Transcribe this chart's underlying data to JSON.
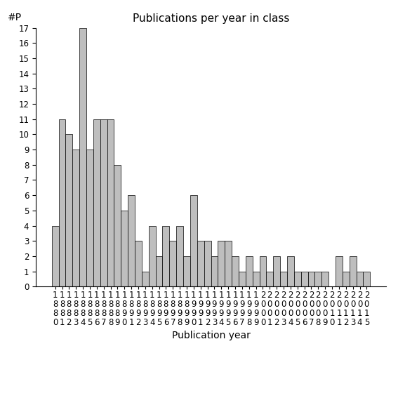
{
  "title": "Publications per year in class",
  "xlabel": "Publication year",
  "ylabel": "#P",
  "bar_color": "#bebebe",
  "edge_color": "#000000",
  "categories": [
    "1880",
    "1881",
    "1882",
    "1883",
    "1884",
    "1885",
    "1886",
    "1887",
    "1888",
    "1889",
    "1890",
    "1891",
    "1892",
    "1893",
    "1894",
    "1895",
    "1896",
    "1897",
    "1898",
    "1899",
    "1990",
    "1991",
    "1992",
    "1993",
    "1994",
    "1995",
    "1996",
    "1997",
    "1998",
    "1999",
    "2000",
    "2001",
    "2002",
    "2003",
    "2004",
    "2005",
    "2006",
    "2007",
    "2008",
    "2009",
    "2010",
    "2011",
    "2012",
    "2013",
    "2014",
    "2015"
  ],
  "values": [
    4,
    11,
    10,
    9,
    17,
    9,
    11,
    11,
    11,
    8,
    5,
    6,
    3,
    1,
    4,
    2,
    4,
    3,
    4,
    2,
    6,
    3,
    3,
    2,
    3,
    3,
    2,
    1,
    2,
    1,
    2,
    1,
    2,
    1,
    2,
    1,
    1,
    1,
    1,
    1,
    0,
    2,
    1,
    2,
    1,
    1
  ],
  "ylim": [
    0,
    17
  ],
  "yticks": [
    0,
    1,
    2,
    3,
    4,
    5,
    6,
    7,
    8,
    9,
    10,
    11,
    12,
    13,
    14,
    15,
    16,
    17
  ],
  "title_fontsize": 11,
  "label_fontsize": 10,
  "tick_fontsize": 8.5,
  "bg_color": "#ffffff"
}
